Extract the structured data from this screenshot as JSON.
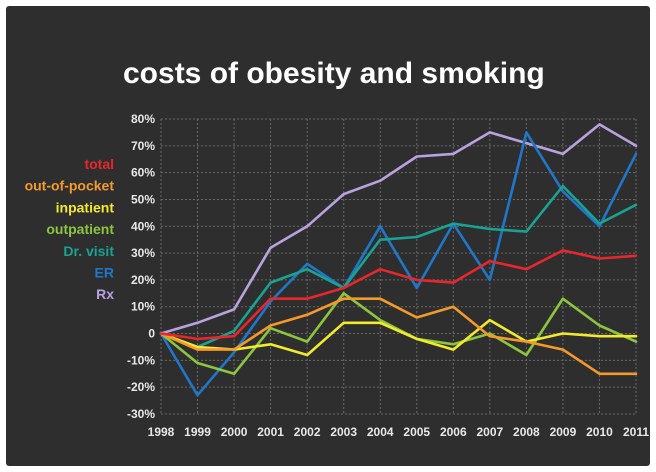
{
  "chart_data": {
    "type": "line",
    "title": "costs of obesity and smoking",
    "xlabel": "",
    "ylabel": "",
    "x": [
      1998,
      1999,
      2000,
      2001,
      2002,
      2003,
      2004,
      2005,
      2006,
      2007,
      2008,
      2009,
      2010,
      2011
    ],
    "x_tick_labels": [
      "1998",
      "1999",
      "2000",
      "2001",
      "2002",
      "2003",
      "2004",
      "2005",
      "2006",
      "2007",
      "2008",
      "2009",
      "2010",
      "2011"
    ],
    "ylim": [
      -30,
      80
    ],
    "y_ticks": [
      -30,
      -20,
      -10,
      0,
      10,
      20,
      30,
      40,
      50,
      60,
      70,
      80
    ],
    "y_tick_labels": [
      "-30%",
      "-20%",
      "-10%",
      "0",
      "10%",
      "20%",
      "30%",
      "40%",
      "50%",
      "60%",
      "70%",
      "80%"
    ],
    "grid": true,
    "legend_position": "left",
    "series": [
      {
        "name": "total",
        "color": "#e8262b",
        "values": [
          0,
          -2,
          -1,
          13,
          13,
          17,
          24,
          20,
          19,
          27,
          24,
          31,
          28,
          29
        ]
      },
      {
        "name": "out-of-pocket",
        "color": "#f39a2b",
        "values": [
          0,
          -6,
          -6,
          3,
          7,
          13,
          13,
          6,
          10,
          -1,
          -3,
          -6,
          -15,
          -15
        ]
      },
      {
        "name": "inpatient",
        "color": "#f2ea2c",
        "values": [
          0,
          -5,
          -6,
          -4,
          -8,
          4,
          4,
          -2,
          -6,
          5,
          -3,
          0,
          -1,
          -1
        ]
      },
      {
        "name": "outpatient",
        "color": "#8cc63f",
        "values": [
          0,
          -11,
          -15,
          2,
          -3,
          15,
          5,
          -2,
          -4,
          0,
          -8,
          13,
          3,
          -3
        ]
      },
      {
        "name": "Dr. visit",
        "color": "#18a392",
        "values": [
          0,
          -5,
          1,
          19,
          24,
          17,
          35,
          36,
          41,
          39,
          38,
          55,
          41,
          48
        ]
      },
      {
        "name": "ER",
        "color": "#1f77c9",
        "values": [
          0,
          -23,
          -7,
          12,
          26,
          17,
          40,
          17,
          41,
          20,
          75,
          53,
          40,
          67
        ]
      },
      {
        "name": "Rx",
        "color": "#b9a2e0",
        "values": [
          0,
          4,
          9,
          32,
          40,
          52,
          57,
          66,
          67,
          75,
          71,
          67,
          78,
          70
        ]
      }
    ]
  }
}
